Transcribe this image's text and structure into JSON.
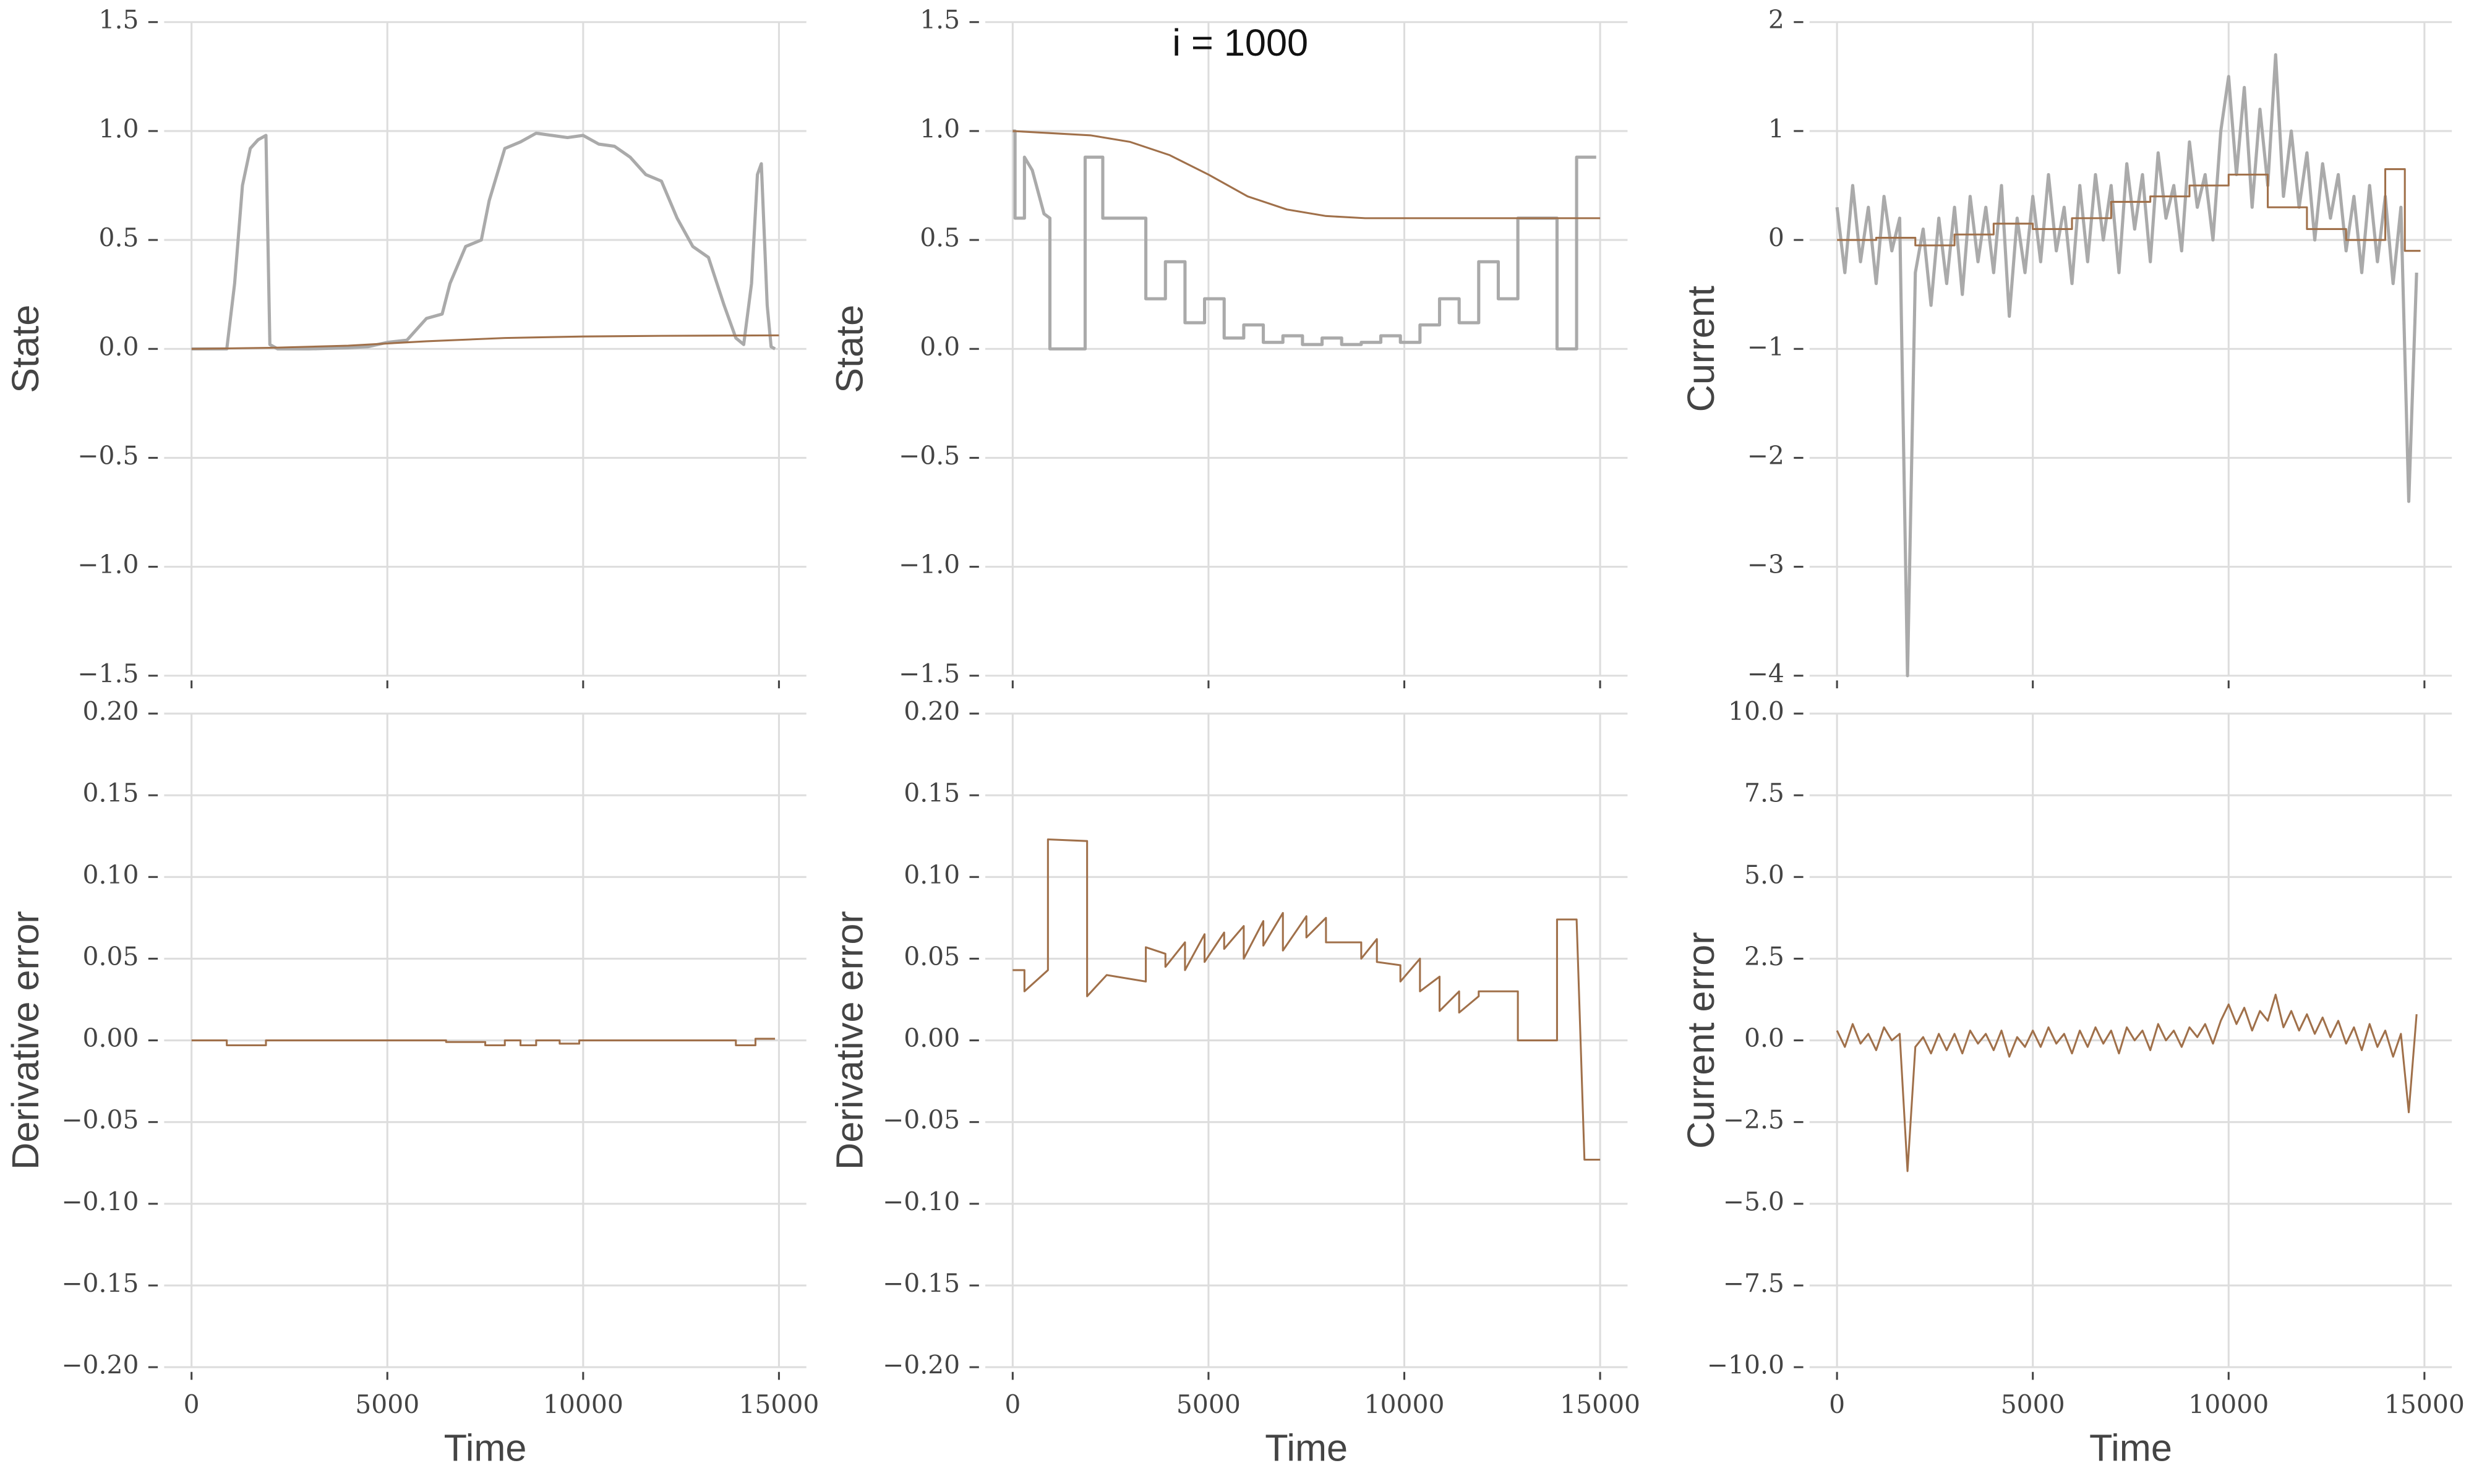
{
  "chart_data": [
    {
      "type": "line",
      "ylabel": "State",
      "xlim": [
        -700,
        15700
      ],
      "ylim": [
        -1.5,
        1.5
      ],
      "xticks": [
        0,
        5000,
        10000,
        15000
      ],
      "xtick_labels": false,
      "yticks": [
        1.5,
        {
          "value": 1.0,
          "label": "1.0"
        },
        0.5,
        {
          "value": 0,
          "label": "0.0"
        },
        {
          "value": -0.5,
          "label": "−0.5"
        },
        {
          "value": -1.0,
          "label": "−1.0"
        },
        {
          "value": -1.5,
          "label": "−1.5"
        }
      ],
      "grid": true,
      "series": [
        {
          "color": "#aaaaaa",
          "x": [
            0,
            900,
            1100,
            1300,
            1500,
            1700,
            1900,
            2000,
            2200,
            3000,
            4000,
            4500,
            5000,
            5500,
            6000,
            6400,
            6600,
            7000,
            7400,
            7600,
            7800,
            8000,
            8400,
            8800,
            9200,
            9600,
            10000,
            10400,
            10800,
            11200,
            11600,
            12000,
            12400,
            12800,
            13200,
            13600,
            13900,
            14100,
            14300,
            14450,
            14550,
            14700,
            14800,
            14900
          ],
          "values": [
            0,
            0,
            0.3,
            0.75,
            0.92,
            0.96,
            0.98,
            0.02,
            0,
            0,
            0.005,
            0.01,
            0.03,
            0.04,
            0.14,
            0.16,
            0.3,
            0.47,
            0.5,
            0.68,
            0.8,
            0.92,
            0.95,
            0.99,
            0.98,
            0.97,
            0.98,
            0.94,
            0.93,
            0.88,
            0.8,
            0.77,
            0.6,
            0.47,
            0.42,
            0.2,
            0.05,
            0.02,
            0.3,
            0.8,
            0.85,
            0.2,
            0.01,
            0
          ]
        },
        {
          "color": "#a0704a",
          "x": [
            0,
            2000,
            4000,
            6000,
            8000,
            10000,
            12000,
            15000
          ],
          "values": [
            0,
            0.005,
            0.015,
            0.035,
            0.05,
            0.057,
            0.06,
            0.062
          ]
        }
      ]
    },
    {
      "type": "line",
      "ylabel": "State",
      "annotation": "i = 1000",
      "xlim": [
        -700,
        15700
      ],
      "ylim": [
        -1.5,
        1.5
      ],
      "xticks": [
        0,
        5000,
        10000,
        15000
      ],
      "xtick_labels": false,
      "yticks": [
        1.5,
        {
          "value": 1.0,
          "label": "1.0"
        },
        0.5,
        {
          "value": 0,
          "label": "0.0"
        },
        {
          "value": -0.5,
          "label": "−0.5"
        },
        {
          "value": -1.0,
          "label": "−1.0"
        },
        {
          "value": -1.5,
          "label": "−1.5"
        }
      ],
      "grid": true,
      "series": [
        {
          "color": "#aaaaaa",
          "x": [
            0,
            60,
            60,
            300,
            300,
            500,
            800,
            950,
            950,
            1850,
            1850,
            2300,
            2300,
            3400,
            3400,
            3900,
            3900,
            4400,
            4400,
            4900,
            4900,
            5400,
            5400,
            5900,
            5900,
            6400,
            6400,
            6900,
            6900,
            7400,
            7400,
            7900,
            7900,
            8400,
            8400,
            8900,
            8900,
            9400,
            9400,
            9900,
            9900,
            10400,
            10400,
            10900,
            10900,
            11400,
            11400,
            11900,
            11900,
            12400,
            12400,
            12900,
            12900,
            13900,
            13900,
            14400,
            14400,
            14900
          ],
          "values": [
            1.0,
            1.0,
            0.6,
            0.6,
            0.88,
            0.82,
            0.62,
            0.6,
            0,
            0,
            0.88,
            0.88,
            0.6,
            0.6,
            0.23,
            0.23,
            0.4,
            0.4,
            0.12,
            0.12,
            0.23,
            0.23,
            0.05,
            0.05,
            0.11,
            0.11,
            0.03,
            0.03,
            0.06,
            0.06,
            0.02,
            0.02,
            0.05,
            0.05,
            0.02,
            0.02,
            0.03,
            0.03,
            0.06,
            0.06,
            0.03,
            0.03,
            0.11,
            0.11,
            0.23,
            0.23,
            0.12,
            0.12,
            0.4,
            0.4,
            0.23,
            0.23,
            0.6,
            0.6,
            0,
            0,
            0.88,
            0.88
          ]
        },
        {
          "color": "#a0704a",
          "x": [
            0,
            1000,
            2000,
            3000,
            4000,
            5000,
            6000,
            7000,
            8000,
            9000,
            10000,
            12000,
            15000
          ],
          "values": [
            1.0,
            0.99,
            0.98,
            0.95,
            0.89,
            0.8,
            0.7,
            0.64,
            0.61,
            0.6,
            0.6,
            0.6,
            0.6
          ]
        }
      ]
    },
    {
      "type": "line",
      "ylabel": "Current",
      "xlim": [
        -700,
        15700
      ],
      "ylim": [
        -4,
        2
      ],
      "xticks": [
        0,
        5000,
        10000,
        15000
      ],
      "xtick_labels": false,
      "yticks": [
        2,
        1,
        0,
        {
          "value": -1,
          "label": "−1"
        },
        {
          "value": -2,
          "label": "−2"
        },
        {
          "value": -3,
          "label": "−3"
        },
        {
          "value": -4,
          "label": "−4"
        }
      ],
      "grid": true,
      "series": [
        {
          "color": "#aaaaaa",
          "x": [
            0,
            200,
            400,
            600,
            800,
            1000,
            1200,
            1400,
            1600,
            1800,
            2000,
            2200,
            2400,
            2600,
            2800,
            3000,
            3200,
            3400,
            3600,
            3800,
            4000,
            4200,
            4400,
            4600,
            4800,
            5000,
            5200,
            5400,
            5600,
            5800,
            6000,
            6200,
            6400,
            6600,
            6800,
            7000,
            7200,
            7400,
            7600,
            7800,
            8000,
            8200,
            8400,
            8600,
            8800,
            9000,
            9200,
            9400,
            9600,
            9800,
            10000,
            10200,
            10400,
            10600,
            10800,
            11000,
            11200,
            11400,
            11600,
            11800,
            12000,
            12200,
            12400,
            12600,
            12800,
            13000,
            13200,
            13400,
            13600,
            13800,
            14000,
            14200,
            14400,
            14600,
            14800
          ],
          "values": [
            0.3,
            -0.3,
            0.5,
            -0.2,
            0.3,
            -0.4,
            0.4,
            -0.1,
            0.2,
            -4.0,
            -0.3,
            0.1,
            -0.6,
            0.2,
            -0.4,
            0.3,
            -0.5,
            0.4,
            -0.2,
            0.3,
            -0.3,
            0.5,
            -0.7,
            0.2,
            -0.3,
            0.4,
            -0.2,
            0.6,
            -0.1,
            0.3,
            -0.4,
            0.5,
            -0.2,
            0.6,
            0.0,
            0.5,
            -0.3,
            0.7,
            0.1,
            0.6,
            -0.2,
            0.8,
            0.2,
            0.5,
            -0.1,
            0.9,
            0.3,
            0.6,
            0.0,
            1.0,
            1.5,
            0.6,
            1.4,
            0.3,
            1.2,
            0.5,
            1.7,
            0.4,
            1.0,
            0.3,
            0.8,
            0.0,
            0.7,
            0.2,
            0.6,
            -0.1,
            0.4,
            -0.3,
            0.5,
            -0.2,
            0.4,
            -0.4,
            0.3,
            -2.4,
            -0.3
          ]
        },
        {
          "color": "#a0704a",
          "x": [
            0,
            1000,
            1000,
            2000,
            2000,
            3000,
            3000,
            4000,
            4000,
            5000,
            5000,
            6000,
            6000,
            7000,
            7000,
            8000,
            8000,
            9000,
            9000,
            10000,
            10000,
            11000,
            11000,
            12000,
            12000,
            13000,
            13000,
            14000,
            14000,
            14500,
            14500,
            14900
          ],
          "values": [
            0,
            0,
            0.02,
            0.02,
            -0.05,
            -0.05,
            0.05,
            0.05,
            0.15,
            0.15,
            0.1,
            0.1,
            0.2,
            0.2,
            0.35,
            0.35,
            0.4,
            0.4,
            0.5,
            0.5,
            0.6,
            0.6,
            0.3,
            0.3,
            0.1,
            0.1,
            0,
            0,
            0.65,
            0.65,
            -0.1,
            -0.1
          ]
        }
      ]
    },
    {
      "type": "line",
      "ylabel": "Derivative error",
      "xlabel": "Time",
      "xlim": [
        -700,
        15700
      ],
      "ylim": [
        -0.2,
        0.2
      ],
      "xticks": [
        0,
        5000,
        10000,
        15000
      ],
      "xtick_labels": true,
      "yticks": [
        {
          "value": 0.2,
          "label": "0.20"
        },
        0.15,
        {
          "value": 0.1,
          "label": "0.10"
        },
        0.05,
        {
          "value": 0,
          "label": "0.00"
        },
        {
          "value": -0.05,
          "label": "−0.05"
        },
        {
          "value": -0.1,
          "label": "−0.10"
        },
        {
          "value": -0.15,
          "label": "−0.15"
        },
        {
          "value": -0.2,
          "label": "−0.20"
        }
      ],
      "grid": true,
      "series": [
        {
          "color": "#a0704a",
          "x": [
            0,
            900,
            900,
            1900,
            1900,
            6500,
            6500,
            7500,
            7500,
            8000,
            8000,
            8400,
            8400,
            8800,
            8800,
            9400,
            9400,
            9900,
            9900,
            13900,
            13900,
            14400,
            14400,
            14900
          ],
          "values": [
            0,
            0,
            -0.003,
            -0.003,
            0,
            0,
            -0.001,
            -0.001,
            -0.003,
            -0.003,
            0,
            0,
            -0.003,
            -0.003,
            0,
            0,
            -0.002,
            -0.002,
            0,
            0,
            -0.003,
            -0.003,
            0.001,
            0.001
          ]
        }
      ]
    },
    {
      "type": "line",
      "ylabel": "Derivative error",
      "xlabel": "Time",
      "xlim": [
        -700,
        15700
      ],
      "ylim": [
        -0.2,
        0.2
      ],
      "xticks": [
        0,
        5000,
        10000,
        15000
      ],
      "xtick_labels": true,
      "yticks": [
        {
          "value": 0.2,
          "label": "0.20"
        },
        0.15,
        {
          "value": 0.1,
          "label": "0.10"
        },
        0.05,
        {
          "value": 0,
          "label": "0.00"
        },
        {
          "value": -0.05,
          "label": "−0.05"
        },
        {
          "value": -0.1,
          "label": "−0.10"
        },
        {
          "value": -0.15,
          "label": "−0.15"
        },
        {
          "value": -0.2,
          "label": "−0.20"
        }
      ],
      "grid": true,
      "series": [
        {
          "color": "#a0704a",
          "x": [
            0,
            300,
            300,
            900,
            900,
            1900,
            1900,
            2400,
            3400,
            3400,
            3900,
            3900,
            4400,
            4400,
            4900,
            4900,
            5400,
            5400,
            5900,
            5900,
            6400,
            6400,
            6900,
            6900,
            7500,
            7500,
            8000,
            8000,
            8900,
            8900,
            9300,
            9300,
            9900,
            9900,
            10400,
            10400,
            10900,
            10900,
            11400,
            11400,
            11900,
            11900,
            12900,
            12900,
            13900,
            13900,
            14400,
            14600,
            15000
          ],
          "values": [
            0.043,
            0.043,
            0.03,
            0.043,
            0.123,
            0.122,
            0.027,
            0.04,
            0.036,
            0.057,
            0.053,
            0.045,
            0.06,
            0.043,
            0.065,
            0.048,
            0.066,
            0.056,
            0.07,
            0.05,
            0.073,
            0.058,
            0.078,
            0.055,
            0.076,
            0.063,
            0.075,
            0.06,
            0.06,
            0.05,
            0.062,
            0.048,
            0.046,
            0.036,
            0.05,
            0.03,
            0.039,
            0.018,
            0.03,
            0.017,
            0.027,
            0.03,
            0.03,
            0,
            0,
            0.074,
            0.074,
            -0.073,
            -0.073
          ]
        }
      ]
    },
    {
      "type": "line",
      "ylabel": "Current error",
      "xlabel": "Time",
      "xlim": [
        -700,
        15700
      ],
      "ylim": [
        -10,
        10
      ],
      "xticks": [
        0,
        5000,
        10000,
        15000
      ],
      "xtick_labels": true,
      "yticks": [
        {
          "value": 10,
          "label": "10.0"
        },
        7.5,
        {
          "value": 5,
          "label": "5.0"
        },
        2.5,
        {
          "value": 0,
          "label": "0.0"
        },
        {
          "value": -2.5,
          "label": "−2.5"
        },
        {
          "value": -5,
          "label": "−5.0"
        },
        {
          "value": -7.5,
          "label": "−7.5"
        },
        {
          "value": -10,
          "label": "−10.0"
        }
      ],
      "grid": true,
      "series": [
        {
          "color": "#a0704a",
          "x": [
            0,
            200,
            400,
            600,
            800,
            1000,
            1200,
            1400,
            1600,
            1800,
            2000,
            2200,
            2400,
            2600,
            2800,
            3000,
            3200,
            3400,
            3600,
            3800,
            4000,
            4200,
            4400,
            4600,
            4800,
            5000,
            5200,
            5400,
            5600,
            5800,
            6000,
            6200,
            6400,
            6600,
            6800,
            7000,
            7200,
            7400,
            7600,
            7800,
            8000,
            8200,
            8400,
            8600,
            8800,
            9000,
            9200,
            9400,
            9600,
            9800,
            10000,
            10200,
            10400,
            10600,
            10800,
            11000,
            11200,
            11400,
            11600,
            11800,
            12000,
            12200,
            12400,
            12600,
            12800,
            13000,
            13200,
            13400,
            13600,
            13800,
            14000,
            14200,
            14400,
            14600,
            14800
          ],
          "values": [
            0.3,
            -0.2,
            0.5,
            -0.1,
            0.2,
            -0.3,
            0.4,
            0.0,
            0.2,
            -4.0,
            -0.2,
            0.1,
            -0.4,
            0.2,
            -0.3,
            0.2,
            -0.4,
            0.3,
            -0.1,
            0.2,
            -0.3,
            0.3,
            -0.5,
            0.1,
            -0.2,
            0.3,
            -0.2,
            0.4,
            -0.1,
            0.2,
            -0.4,
            0.3,
            -0.2,
            0.4,
            -0.1,
            0.3,
            -0.4,
            0.4,
            0.0,
            0.3,
            -0.3,
            0.5,
            0.0,
            0.3,
            -0.2,
            0.4,
            0.1,
            0.5,
            -0.1,
            0.6,
            1.1,
            0.5,
            1.0,
            0.3,
            0.9,
            0.6,
            1.4,
            0.4,
            0.9,
            0.3,
            0.8,
            0.2,
            0.7,
            0.1,
            0.6,
            -0.1,
            0.4,
            -0.3,
            0.5,
            -0.2,
            0.3,
            -0.5,
            0.2,
            -2.2,
            0.8
          ]
        }
      ]
    }
  ]
}
